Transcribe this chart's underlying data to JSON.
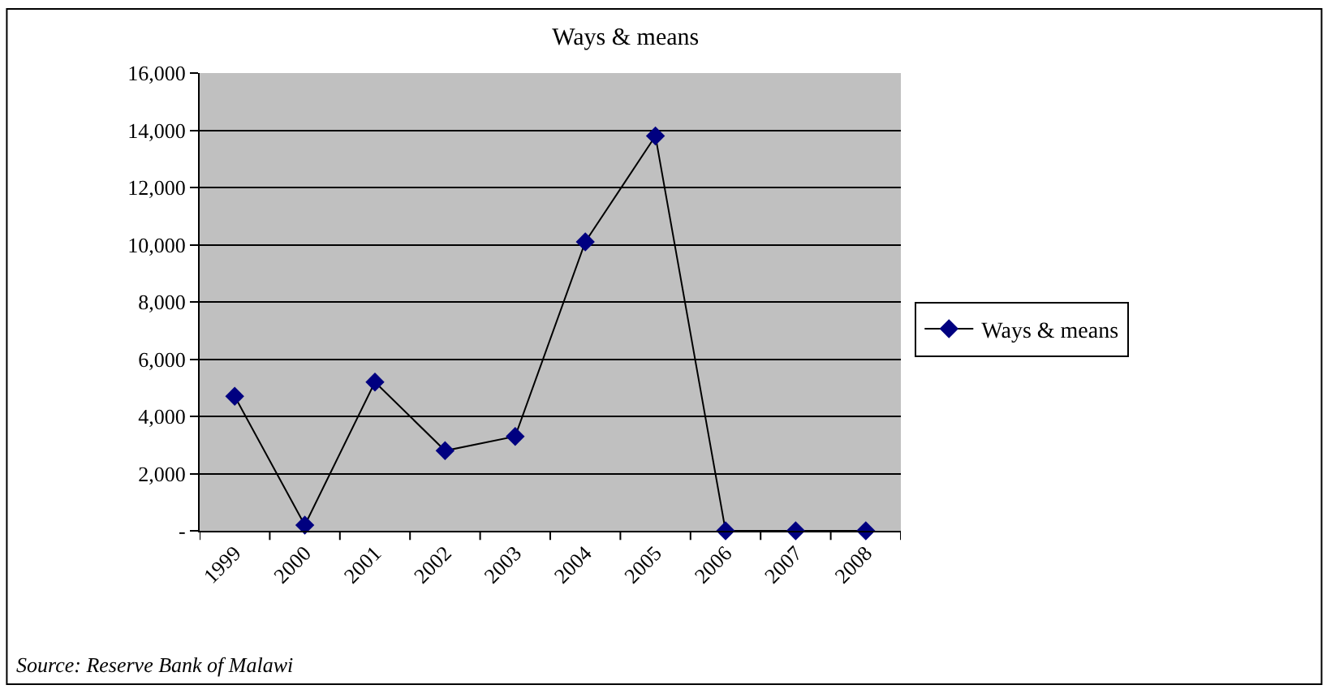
{
  "chart_data": {
    "type": "line",
    "title": "Ways & means",
    "categories": [
      "1999",
      "2000",
      "2001",
      "2002",
      "2003",
      "2004",
      "2005",
      "2006",
      "2007",
      "2008"
    ],
    "series": [
      {
        "name": "Ways & means",
        "color": "#000080",
        "values": [
          4700,
          200,
          5200,
          2800,
          3300,
          10100,
          13800,
          0,
          0,
          0
        ]
      }
    ],
    "ylim": [
      0,
      16000
    ],
    "yticks": [
      {
        "value": 0,
        "label": "-"
      },
      {
        "value": 2000,
        "label": "2,000"
      },
      {
        "value": 4000,
        "label": "4,000"
      },
      {
        "value": 6000,
        "label": "6,000"
      },
      {
        "value": 8000,
        "label": "8,000"
      },
      {
        "value": 10000,
        "label": "10,000"
      },
      {
        "value": 12000,
        "label": "12,000"
      },
      {
        "value": 14000,
        "label": "14,000"
      },
      {
        "value": 16000,
        "label": "16,000"
      }
    ],
    "grid": "y",
    "legend": "right",
    "marker": "diamond",
    "line_style": "solid",
    "annotations": [
      "Source: Reserve Bank of Malawi"
    ]
  }
}
